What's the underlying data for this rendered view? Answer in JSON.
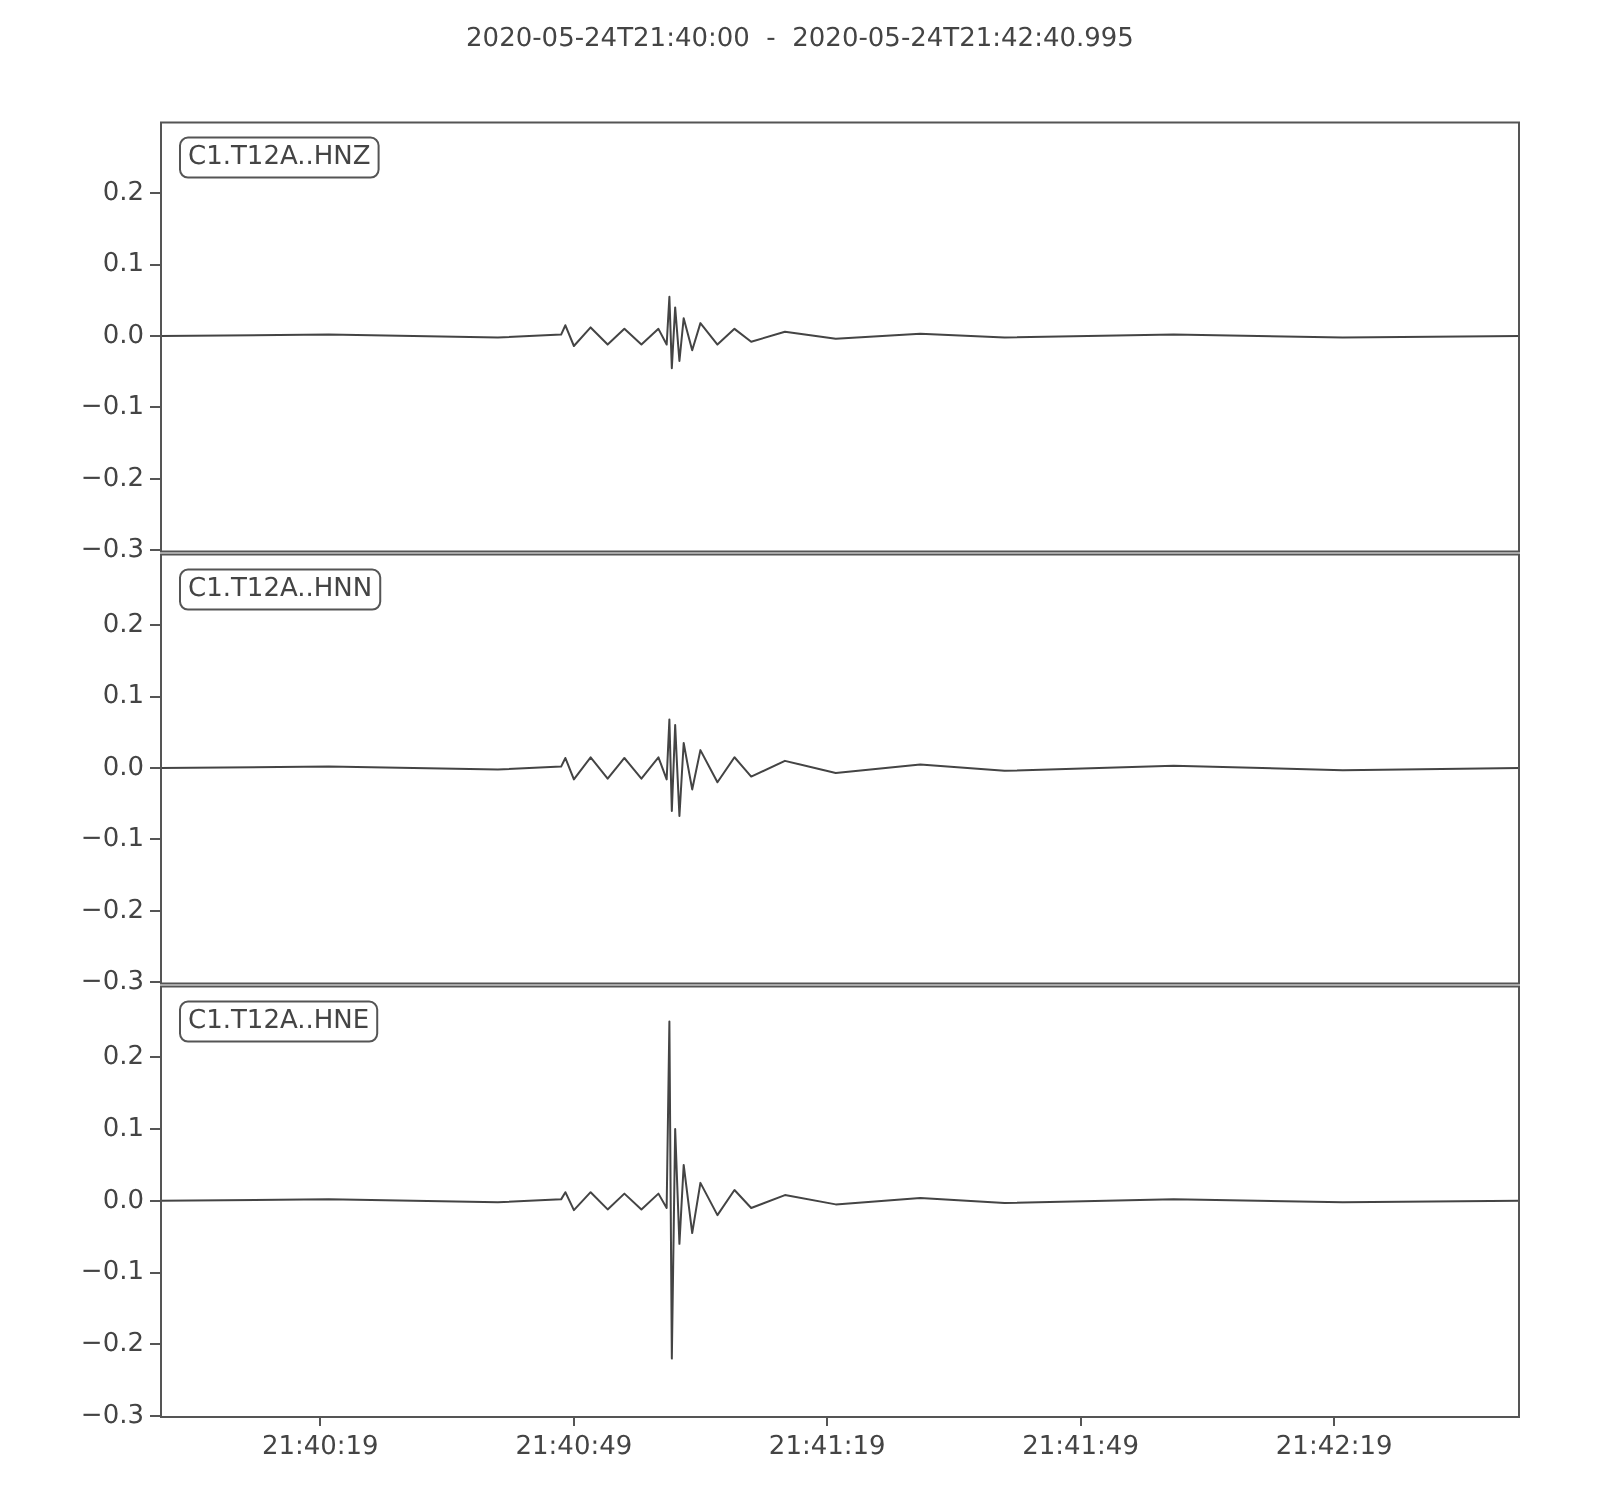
{
  "chart_data": [
    {
      "type": "line",
      "title": "2020-05-24T21:40:00  -  2020-05-24T21:42:40.995",
      "annotations": [
        "C1.T12A..HNZ"
      ],
      "tick_labels": "y",
      "grid": false,
      "legend": false,
      "marker": "none",
      "x": [
        21.66667,
        21.67222,
        21.67778,
        21.67986,
        21.68,
        21.68028,
        21.68083,
        21.68139,
        21.68194,
        21.6825,
        21.68306,
        21.68333,
        21.68342,
        21.6835,
        21.68361,
        21.68375,
        21.68389,
        21.68417,
        21.68444,
        21.685,
        21.68556,
        21.68611,
        21.68722,
        21.68889,
        21.69167,
        21.69444,
        21.7,
        21.70556,
        21.71139
      ],
      "series": [
        {
          "color": "#444444",
          "values": [
            0,
            0.002,
            -0.002,
            0.002,
            0.015,
            -0.014,
            0.012,
            -0.012,
            0.01,
            -0.012,
            0.01,
            -0.012,
            0.055,
            -0.045,
            0.04,
            -0.035,
            0.025,
            -0.02,
            0.018,
            -0.012,
            0.01,
            -0.008,
            0.006,
            -0.004,
            0.003,
            -0.002,
            0.002,
            -0.002,
            0
          ]
        }
      ],
      "xlim": [
        21.66667,
        21.71139
      ],
      "ylim": [
        -0.3,
        0.3
      ],
      "yticks": [
        {
          "value": -0.3,
          "label": "−0.3"
        },
        {
          "value": -0.2,
          "label": "−0.2"
        },
        {
          "value": -0.1,
          "label": "−0.1"
        },
        {
          "value": 0,
          "label": "0.0"
        },
        {
          "value": 0.1,
          "label": "0.1"
        },
        {
          "value": 0.2,
          "label": "0.2"
        }
      ]
    },
    {
      "type": "line",
      "annotations": [
        "C1.T12A..HNN"
      ],
      "tick_labels": "y",
      "grid": false,
      "legend": false,
      "marker": "none",
      "x": [
        21.66667,
        21.67222,
        21.67778,
        21.67986,
        21.68,
        21.68028,
        21.68083,
        21.68139,
        21.68194,
        21.6825,
        21.68306,
        21.68333,
        21.68342,
        21.6835,
        21.68361,
        21.68375,
        21.68389,
        21.68417,
        21.68444,
        21.685,
        21.68556,
        21.68611,
        21.68722,
        21.68889,
        21.69167,
        21.69444,
        21.7,
        21.70556,
        21.71139
      ],
      "series": [
        {
          "color": "#444444",
          "values": [
            0,
            0.002,
            -0.002,
            0.002,
            0.014,
            -0.016,
            0.015,
            -0.015,
            0.014,
            -0.015,
            0.015,
            -0.016,
            0.068,
            -0.06,
            0.06,
            -0.067,
            0.035,
            -0.03,
            0.025,
            -0.02,
            0.015,
            -0.012,
            0.01,
            -0.007,
            0.005,
            -0.004,
            0.003,
            -0.003,
            0
          ]
        }
      ],
      "xlim": [
        21.66667,
        21.71139
      ],
      "ylim": [
        -0.3,
        0.3
      ],
      "yticks": [
        {
          "value": -0.3,
          "label": "−0.3"
        },
        {
          "value": -0.2,
          "label": "−0.2"
        },
        {
          "value": -0.1,
          "label": "−0.1"
        },
        {
          "value": 0,
          "label": "0.0"
        },
        {
          "value": 0.1,
          "label": "0.1"
        },
        {
          "value": 0.2,
          "label": "0.2"
        }
      ]
    },
    {
      "type": "line",
      "annotations": [
        "C1.T12A..HNE"
      ],
      "grid": false,
      "legend": false,
      "marker": "none",
      "x": [
        21.66667,
        21.67222,
        21.67778,
        21.67986,
        21.68,
        21.68028,
        21.68083,
        21.68139,
        21.68194,
        21.6825,
        21.68306,
        21.68333,
        21.68342,
        21.6835,
        21.68361,
        21.68375,
        21.68389,
        21.68417,
        21.68444,
        21.685,
        21.68556,
        21.68611,
        21.68722,
        21.68889,
        21.69167,
        21.69444,
        21.7,
        21.70556,
        21.71139
      ],
      "series": [
        {
          "color": "#444444",
          "values": [
            0,
            0.002,
            -0.002,
            0.002,
            0.012,
            -0.013,
            0.012,
            -0.012,
            0.01,
            -0.012,
            0.01,
            -0.01,
            0.25,
            -0.22,
            0.1,
            -0.06,
            0.05,
            -0.045,
            0.025,
            -0.02,
            0.015,
            -0.01,
            0.008,
            -0.005,
            0.004,
            -0.003,
            0.002,
            -0.002,
            0
          ]
        }
      ],
      "xlim": [
        21.66667,
        21.71139
      ],
      "xticks": [
        {
          "value": 21.67194,
          "label": "21:40:19"
        },
        {
          "value": 21.68028,
          "label": "21:40:49"
        },
        {
          "value": 21.68861,
          "label": "21:41:19"
        },
        {
          "value": 21.69694,
          "label": "21:41:49"
        },
        {
          "value": 21.70528,
          "label": "21:42:19"
        }
      ],
      "ylim": [
        -0.3,
        0.3
      ],
      "yticks": [
        {
          "value": -0.3,
          "label": "−0.3"
        },
        {
          "value": -0.2,
          "label": "−0.2"
        },
        {
          "value": -0.1,
          "label": "−0.1"
        },
        {
          "value": 0,
          "label": "0.0"
        },
        {
          "value": 0.1,
          "label": "0.1"
        },
        {
          "value": 0.2,
          "label": "0.2"
        }
      ]
    }
  ]
}
